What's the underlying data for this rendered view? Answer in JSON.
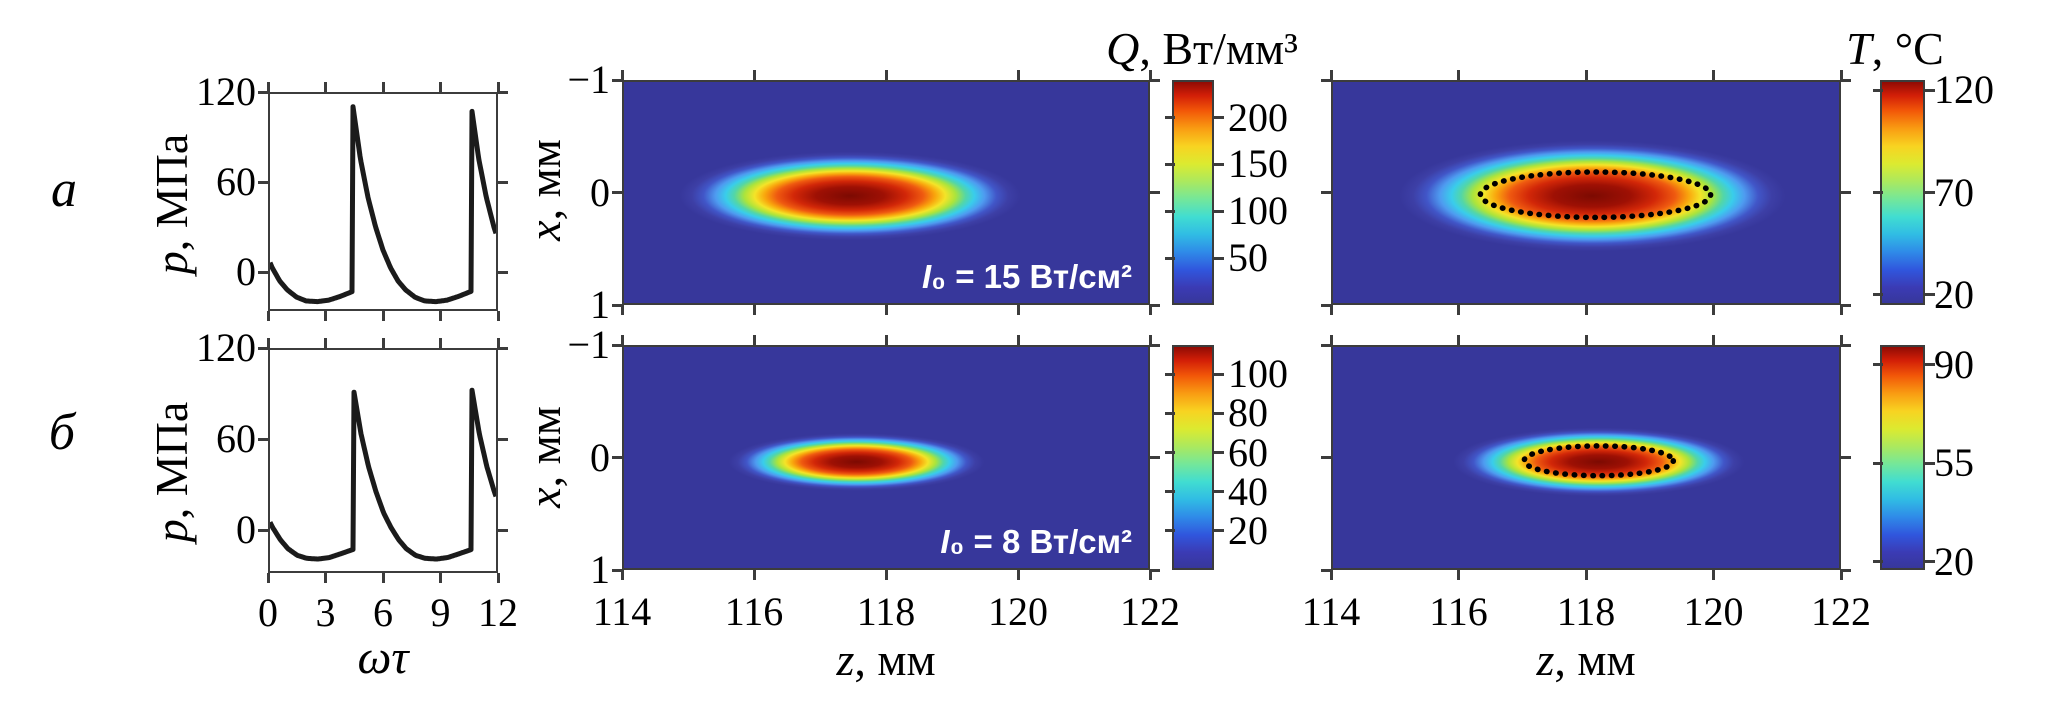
{
  "labels": {
    "row_a": "a",
    "row_b": "б"
  },
  "colors": {
    "map_background": "#37379b",
    "line_color": "#1b1b1b",
    "frame_color": "#3c3c3c",
    "annotation_color": "#ffffff",
    "contour_color": "#000000",
    "jet_bar_stops": [
      [
        0,
        "#37379b"
      ],
      [
        0.07,
        "#3b3bb4"
      ],
      [
        0.15,
        "#3056dd"
      ],
      [
        0.23,
        "#2f8ae8"
      ],
      [
        0.31,
        "#30bce4"
      ],
      [
        0.39,
        "#41ddd1"
      ],
      [
        0.47,
        "#74e79a"
      ],
      [
        0.55,
        "#abe95e"
      ],
      [
        0.63,
        "#dcea30"
      ],
      [
        0.71,
        "#f8d321"
      ],
      [
        0.79,
        "#f99c12"
      ],
      [
        0.87,
        "#f25708"
      ],
      [
        0.94,
        "#d21e07"
      ],
      [
        1,
        "#8f0b04"
      ]
    ],
    "spot_stops": [
      [
        0,
        "#7c0a02"
      ],
      [
        0.2,
        "#9e1004"
      ],
      [
        0.33,
        "#d22708"
      ],
      [
        0.43,
        "#ef5a10"
      ],
      [
        0.5,
        "#f9a60d"
      ],
      [
        0.56,
        "#f4e428"
      ],
      [
        0.62,
        "#abe43c"
      ],
      [
        0.68,
        "#52d6a8"
      ],
      [
        0.73,
        "#39cdeb"
      ],
      [
        0.79,
        "#4e9bf0"
      ],
      [
        0.86,
        "#4156c8"
      ],
      [
        0.93,
        "#3d3fa6"
      ],
      [
        1,
        "#37379b"
      ]
    ]
  },
  "chart_data": [
    {
      "id": "pressure_a",
      "type": "line",
      "row": "a",
      "x_axis": {
        "label": "ωτ",
        "range": [
          0,
          12
        ],
        "ticks": [
          0,
          3,
          6,
          9,
          12
        ],
        "tick_labels_visible": false
      },
      "y_axis": {
        "label_var": "p",
        "label_rest": ", МПа",
        "range": [
          -26,
          120
        ],
        "ticks": [
          0,
          60,
          120
        ]
      },
      "waveform": {
        "peak_mpa": 112,
        "trough_mpa": -21,
        "shock_positions": [
          4.4,
          10.68
        ],
        "period": 6.283,
        "shock_phase": 4.4,
        "post_shock_profile": [
          [
            0,
            112
          ],
          [
            0.4,
            76
          ],
          [
            0.8,
            50
          ],
          [
            1.2,
            30
          ],
          [
            1.6,
            14
          ],
          [
            2.0,
            2
          ],
          [
            2.4,
            -7
          ],
          [
            2.8,
            -13
          ],
          [
            3.3,
            -18
          ],
          [
            3.8,
            -20.5
          ],
          [
            4.4,
            -21
          ],
          [
            5.0,
            -20
          ],
          [
            5.6,
            -17.5
          ],
          [
            6.283,
            -14
          ]
        ]
      }
    },
    {
      "id": "pressure_b",
      "type": "line",
      "row": "б",
      "x_axis": {
        "label": "ωτ",
        "range": [
          0,
          12
        ],
        "ticks": [
          0,
          3,
          6,
          9,
          12
        ],
        "tick_labels_visible": true
      },
      "y_axis": {
        "label_var": "p",
        "label_rest": ", МПа",
        "range": [
          -28,
          120
        ],
        "ticks": [
          0,
          60,
          120
        ]
      },
      "waveform": {
        "peak_mpa": 94,
        "trough_mpa": -20,
        "shock_positions": [
          4.43,
          10.71
        ],
        "period": 6.283,
        "shock_phase": 4.43,
        "post_shock_profile": [
          [
            0,
            94
          ],
          [
            0.4,
            64
          ],
          [
            0.8,
            42
          ],
          [
            1.2,
            25
          ],
          [
            1.6,
            11
          ],
          [
            2.0,
            1
          ],
          [
            2.4,
            -7
          ],
          [
            2.8,
            -13
          ],
          [
            3.3,
            -17.5
          ],
          [
            3.8,
            -19.5
          ],
          [
            4.4,
            -20
          ],
          [
            5.0,
            -19
          ],
          [
            5.6,
            -16.5
          ],
          [
            6.283,
            -13.5
          ]
        ]
      }
    },
    {
      "id": "heat_Q_a",
      "type": "heatmap",
      "row": "a",
      "x_axis": {
        "label_var": "z",
        "label_rest": ", мм",
        "range": [
          114,
          122
        ],
        "ticks": [
          114,
          116,
          118,
          120,
          122
        ],
        "tick_labels_visible": false
      },
      "y_axis": {
        "label_var": "x",
        "label_rest": ", мм",
        "range": [
          -1,
          1
        ],
        "ticks": [
          -1,
          0,
          1
        ],
        "tick_labels_visible": true
      },
      "annotation": {
        "var": "I",
        "rest": "₀ = 15 Вт/см²"
      },
      "colorbar": {
        "title_var": "Q",
        "title_rest": ", Вт/мм³",
        "ticks": [
          50,
          100,
          150,
          200
        ],
        "range": [
          0,
          240
        ]
      },
      "field": {
        "peak_value": 230,
        "background_value": 0,
        "center_z_mm": 117.45,
        "center_x_mm": 0.03,
        "outer_radius_z_mm": 2.6,
        "outer_radius_x_mm": 0.4
      },
      "contour": null
    },
    {
      "id": "heat_Q_b",
      "type": "heatmap",
      "row": "б",
      "x_axis": {
        "label_var": "z",
        "label_rest": ", мм",
        "range": [
          114,
          122
        ],
        "ticks": [
          114,
          116,
          118,
          120,
          122
        ],
        "tick_labels_visible": true
      },
      "y_axis": {
        "label_var": "x",
        "label_rest": ", мм",
        "range": [
          -1,
          1
        ],
        "ticks": [
          -1,
          0,
          1
        ],
        "tick_labels_visible": true
      },
      "annotation": {
        "var": "I",
        "rest": "₀ = 8 Вт/см²"
      },
      "colorbar": {
        "title_var": "",
        "title_rest": "",
        "ticks": [
          20,
          40,
          60,
          80,
          100
        ],
        "range": [
          0,
          115
        ]
      },
      "field": {
        "peak_value": 108,
        "background_value": 0,
        "center_z_mm": 117.55,
        "center_x_mm": 0.04,
        "outer_radius_z_mm": 1.95,
        "outer_radius_x_mm": 0.26
      },
      "contour": null
    },
    {
      "id": "temp_T_a",
      "type": "heatmap",
      "row": "a",
      "x_axis": {
        "label_var": "z",
        "label_rest": ", мм",
        "range": [
          114,
          122
        ],
        "ticks": [
          114,
          116,
          118,
          120,
          122
        ],
        "tick_labels_visible": false
      },
      "y_axis": {
        "label_var": "x",
        "label_rest": ", мм",
        "range": [
          -1,
          1
        ],
        "ticks": [
          -1,
          0,
          1
        ],
        "tick_labels_visible": false
      },
      "annotation": null,
      "colorbar": {
        "title_var": "T",
        "title_rest": ", °C",
        "ticks": [
          20,
          70,
          120
        ],
        "range": [
          15,
          125
        ]
      },
      "field": {
        "peak_value": 122,
        "background_value": 20,
        "center_z_mm": 118.1,
        "center_x_mm": 0.03,
        "outer_radius_z_mm": 3.05,
        "outer_radius_x_mm": 0.5
      },
      "contour": {
        "style": "dotted",
        "center_z_mm": 118.15,
        "center_x_mm": 0.02,
        "half_z_mm": 1.82,
        "half_x_mm": 0.205
      }
    },
    {
      "id": "temp_T_b",
      "type": "heatmap",
      "row": "б",
      "x_axis": {
        "label_var": "z",
        "label_rest": ", мм",
        "range": [
          114,
          122
        ],
        "ticks": [
          114,
          116,
          118,
          120,
          122
        ],
        "tick_labels_visible": true
      },
      "y_axis": {
        "label_var": "x",
        "label_rest": ", мм",
        "range": [
          -1,
          1
        ],
        "ticks": [
          -1,
          0,
          1
        ],
        "tick_labels_visible": false
      },
      "annotation": null,
      "colorbar": {
        "title_var": "",
        "title_rest": "",
        "ticks": [
          20,
          55,
          90
        ],
        "range": [
          17,
          97
        ]
      },
      "field": {
        "peak_value": 93,
        "background_value": 20,
        "center_z_mm": 118.2,
        "center_x_mm": 0.04,
        "outer_radius_z_mm": 2.3,
        "outer_radius_x_mm": 0.31
      },
      "contour": {
        "style": "dotted",
        "center_z_mm": 118.2,
        "center_x_mm": 0.03,
        "half_z_mm": 1.18,
        "half_x_mm": 0.135
      }
    }
  ]
}
